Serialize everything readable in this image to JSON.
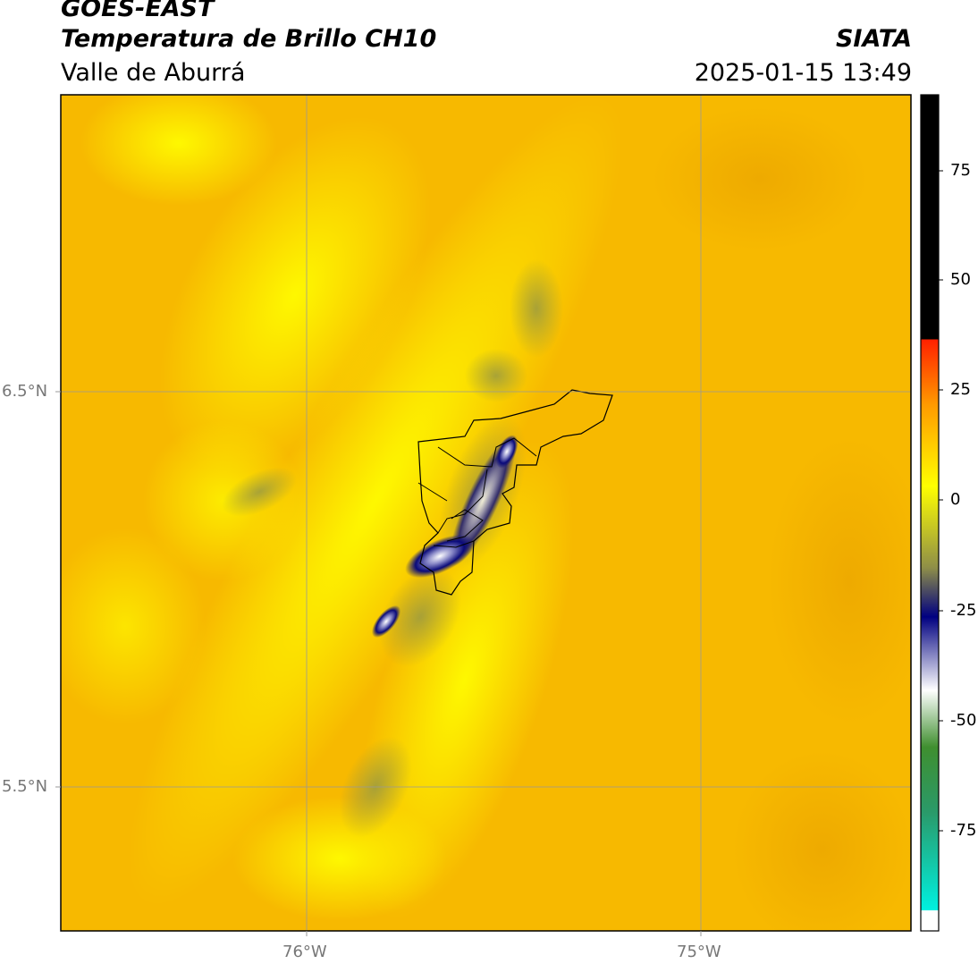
{
  "header": {
    "satellite": "GOES-EAST",
    "product": "Temperatura de Brillo CH10",
    "region": "Valle de Aburrá",
    "brand": "SIATA",
    "timestamp": "2025-01-15 13:49"
  },
  "map": {
    "lon_labels": [
      "76°W",
      "75°W"
    ],
    "lat_labels": [
      "6.5°N",
      "5.5°N"
    ],
    "background_color": "#f7b900",
    "feature_colors": {
      "cold_core": "#0a0a7a",
      "cool_edge": "#ffff00",
      "mid": "#a9a93a"
    }
  },
  "colorbar": {
    "ticks": [
      "75",
      "50",
      "25",
      "0",
      "-25",
      "-50",
      "-75"
    ],
    "colors": [
      "#000000",
      "#ff2000",
      "#ff9a00",
      "#ffff00",
      "#8e8e48",
      "#000080",
      "#ffffff",
      "#3f8f2f",
      "#00e8d8"
    ]
  }
}
